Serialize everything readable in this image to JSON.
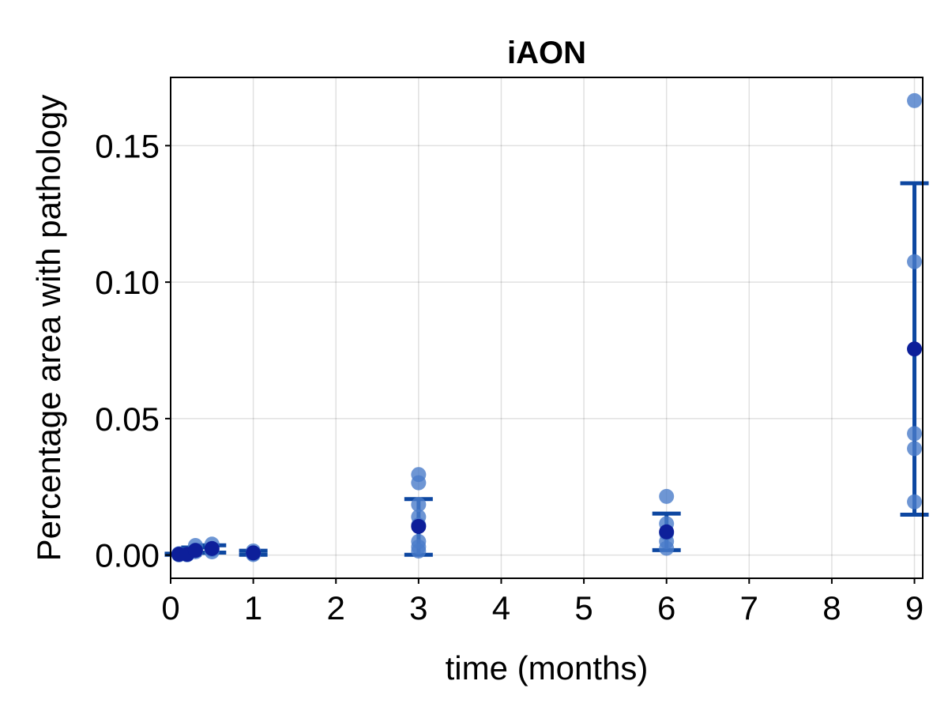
{
  "chart_data": {
    "type": "scatter",
    "title": "iAON",
    "xlabel": "time (months)",
    "ylabel": "Percentage area with pathology",
    "xlim": [
      0,
      9.1
    ],
    "ylim": [
      -0.0085,
      0.175
    ],
    "xticks": [
      0,
      1,
      2,
      3,
      4,
      5,
      6,
      7,
      8,
      9
    ],
    "xtick_labels": [
      "0",
      "1",
      "2",
      "3",
      "4",
      "5",
      "6",
      "7",
      "8",
      "9"
    ],
    "yticks": [
      0.0,
      0.05,
      0.1,
      0.15
    ],
    "ytick_labels": [
      "0.00",
      "0.05",
      "0.10",
      "0.15"
    ],
    "grid": true,
    "colors": {
      "points": "#4a7cc9",
      "mean": "#0d1f9a",
      "error_bars": "#0d47a1"
    },
    "series": [
      {
        "kind": "individual",
        "points": [
          {
            "x": 0.1,
            "y": 0.0005
          },
          {
            "x": 0.1,
            "y": 0.0001
          },
          {
            "x": 0.1,
            "y": 0.0002
          },
          {
            "x": 0.2,
            "y": 0.0003
          },
          {
            "x": 0.2,
            "y": 0.0001
          },
          {
            "x": 0.2,
            "y": 0.0004
          },
          {
            "x": 0.3,
            "y": 0.0035
          },
          {
            "x": 0.3,
            "y": 0.0012
          },
          {
            "x": 0.3,
            "y": 0.0018
          },
          {
            "x": 0.5,
            "y": 0.004
          },
          {
            "x": 0.5,
            "y": 0.0012
          },
          {
            "x": 0.5,
            "y": 0.002
          },
          {
            "x": 1,
            "y": 0.0015
          },
          {
            "x": 1,
            "y": 0.0005
          },
          {
            "x": 1,
            "y": 0.0002
          },
          {
            "x": 3,
            "y": 0.0295
          },
          {
            "x": 3,
            "y": 0.0265
          },
          {
            "x": 3,
            "y": 0.0185
          },
          {
            "x": 3,
            "y": 0.014
          },
          {
            "x": 3,
            "y": 0.011
          },
          {
            "x": 3,
            "y": 0.005
          },
          {
            "x": 3,
            "y": 0.003
          },
          {
            "x": 3,
            "y": 0.0015
          },
          {
            "x": 6,
            "y": 0.0215
          },
          {
            "x": 6,
            "y": 0.0115
          },
          {
            "x": 6,
            "y": 0.008
          },
          {
            "x": 6,
            "y": 0.005
          },
          {
            "x": 6,
            "y": 0.0025
          },
          {
            "x": 9,
            "y": 0.1665
          },
          {
            "x": 9,
            "y": 0.1075
          },
          {
            "x": 9,
            "y": 0.0445
          },
          {
            "x": 9,
            "y": 0.039
          },
          {
            "x": 9,
            "y": 0.0195
          }
        ]
      },
      {
        "kind": "mean_with_error",
        "points": [
          {
            "x": 0.1,
            "y": 0.0003,
            "lo": 0.0001,
            "hi": 0.0005
          },
          {
            "x": 0.2,
            "y": 0.0003,
            "lo": 0.0001,
            "hi": 0.0005
          },
          {
            "x": 0.3,
            "y": 0.0017,
            "lo": 0.0008,
            "hi": 0.0028
          },
          {
            "x": 0.5,
            "y": 0.0024,
            "lo": 0.0009,
            "hi": 0.0036
          },
          {
            "x": 1,
            "y": 0.0008,
            "lo": 0.0001,
            "hi": 0.0016
          },
          {
            "x": 3,
            "y": 0.0105,
            "lo": 0.0001,
            "hi": 0.0205
          },
          {
            "x": 6,
            "y": 0.0085,
            "lo": 0.0018,
            "hi": 0.0152
          },
          {
            "x": 9,
            "y": 0.0755,
            "lo": 0.0148,
            "hi": 0.1362
          }
        ]
      }
    ]
  }
}
